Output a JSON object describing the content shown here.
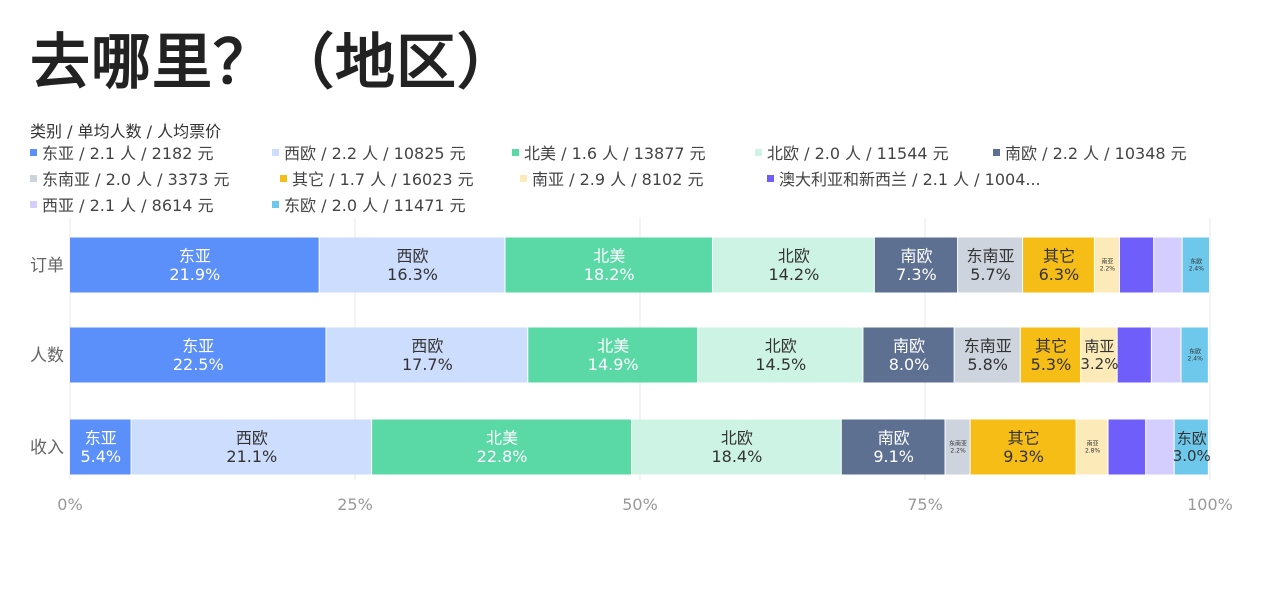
{
  "title": "去哪里？（地区）",
  "legend_title": "类别 / 单均人数 / 人均票价",
  "chart_data": {
    "type": "bar",
    "orientation": "horizontal",
    "stacked": "percent",
    "categories": [
      "订单",
      "人数",
      "收入"
    ],
    "xlim": [
      0,
      100
    ],
    "x_ticks": [
      "0%",
      "25%",
      "50%",
      "75%",
      "100%"
    ],
    "grid": "vertical",
    "legend_position": "top",
    "series": [
      {
        "name": "东亚",
        "legend": "东亚 / 2.1 人 / 2182 元",
        "color": "#5B8FF9",
        "values": [
          21.9,
          22.5,
          5.4
        ],
        "labels": [
          "东亚\n21.9%",
          "东亚\n22.5%",
          "东亚\n5.4%"
        ]
      },
      {
        "name": "西欧",
        "legend": "西欧 / 2.2 人 / 10825 元",
        "color": "#CDDDFD",
        "values": [
          16.3,
          17.7,
          21.1
        ],
        "labels": [
          "西欧\n16.3%",
          "西欧\n17.7%",
          "西欧\n21.1%"
        ]
      },
      {
        "name": "北美",
        "legend": "北美 / 1.6 人 / 13877 元",
        "color": "#5AD8A6",
        "values": [
          18.2,
          14.9,
          22.8
        ],
        "labels": [
          "北美\n18.2%",
          "北美\n14.9%",
          "北美\n22.8%"
        ]
      },
      {
        "name": "北欧",
        "legend": "北欧 / 2.0 人 / 11544 元",
        "color": "#CDF3E4",
        "values": [
          14.2,
          14.5,
          18.4
        ],
        "labels": [
          "北欧\n14.2%",
          "北欧\n14.5%",
          "北欧\n18.4%"
        ]
      },
      {
        "name": "南欧",
        "legend": "南欧 / 2.2 人 / 10348 元",
        "color": "#5D7092",
        "values": [
          7.3,
          8.0,
          9.1
        ],
        "labels": [
          "南欧\n7.3%",
          "南欧\n8.0%",
          "南欧\n9.1%"
        ]
      },
      {
        "name": "东南亚",
        "legend": "东南亚 / 2.0 人 / 3373 元",
        "color": "#CED4DE",
        "values": [
          5.7,
          5.8,
          2.2
        ],
        "labels": [
          "东南亚\n5.7%",
          "东南亚\n5.8%",
          "东南亚\n2.2%"
        ]
      },
      {
        "name": "其它",
        "legend": "其它 / 1.7 人 / 16023 元",
        "color": "#F6BD16",
        "values": [
          6.3,
          5.3,
          9.3
        ],
        "labels": [
          "其它\n6.3%",
          "其它\n5.3%",
          "其它\n9.3%"
        ]
      },
      {
        "name": "南亚",
        "legend": "南亚 / 2.9 人 / 8102 元",
        "color": "#FCEBB9",
        "values": [
          2.2,
          3.2,
          2.8
        ],
        "labels": [
          "南亚\n2.2%",
          "南亚\n3.2%",
          "南亚\n2.8%"
        ]
      },
      {
        "name": "澳大利亚和新西兰",
        "legend": "澳大利亚和新西兰 / 2.1 人 / 1004...",
        "color": "#6F5EF9",
        "values": [
          3.0,
          3.0,
          3.3
        ],
        "labels": [
          "",
          "",
          ""
        ]
      },
      {
        "name": "西亚",
        "legend": "西亚 / 2.1 人 / 8614 元",
        "color": "#D3CEFD",
        "values": [
          2.5,
          2.6,
          2.5
        ],
        "labels": [
          "",
          "",
          ""
        ]
      },
      {
        "name": "东欧",
        "legend": "东欧 / 2.0 人 / 11471 元",
        "color": "#6DC8EC",
        "values": [
          2.4,
          2.4,
          3.0
        ],
        "labels": [
          "东欧\n2.4%",
          "东欧\n2.4%",
          "东欧\n3.0%"
        ]
      }
    ]
  }
}
